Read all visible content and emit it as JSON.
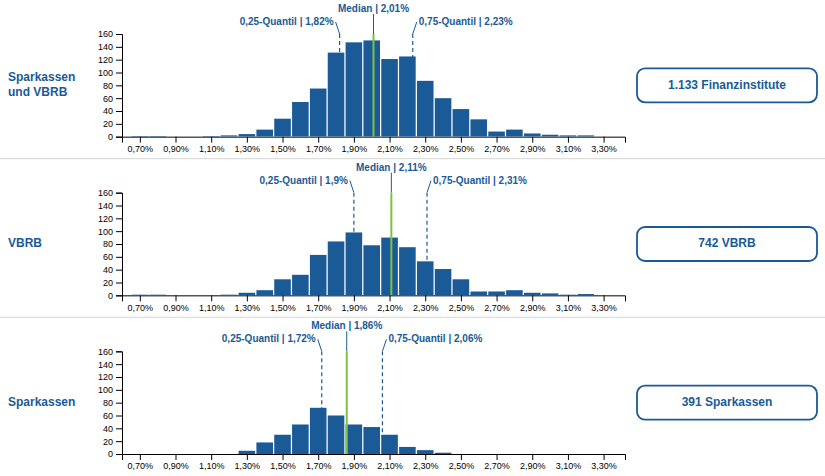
{
  "chart_data": [
    {
      "type": "bar",
      "title": "Sparkassen\nund VBRB",
      "subtitle": "1.133 Finanzinstitute",
      "color": "#1a5a96",
      "grid": false,
      "x": [
        0.7,
        0.8,
        0.9,
        1.0,
        1.1,
        1.2,
        1.3,
        1.4,
        1.5,
        1.6,
        1.7,
        1.8,
        1.9,
        2.0,
        2.1,
        2.2,
        2.3,
        2.4,
        2.5,
        2.6,
        2.7,
        2.8,
        2.9,
        3.0,
        3.1,
        3.2
      ],
      "values": [
        1,
        1,
        0,
        0,
        1,
        2,
        4,
        11,
        28,
        54,
        75,
        131,
        147,
        150,
        121,
        125,
        87,
        60,
        43,
        27,
        8,
        11,
        5,
        3,
        2,
        2
      ],
      "xlim": [
        0.6,
        3.42
      ],
      "xticks": [
        {
          "value": 0.7,
          "label": "0,70%"
        },
        {
          "value": 0.9,
          "label": "0,90%"
        },
        {
          "value": 1.1,
          "label": "1,10%"
        },
        {
          "value": 1.3,
          "label": "1,30%"
        },
        {
          "value": 1.5,
          "label": "1,50%"
        },
        {
          "value": 1.7,
          "label": "1,70%"
        },
        {
          "value": 1.9,
          "label": "1,90%"
        },
        {
          "value": 2.1,
          "label": "2,10%"
        },
        {
          "value": 2.3,
          "label": "2,30%"
        },
        {
          "value": 2.5,
          "label": "2,50%"
        },
        {
          "value": 2.7,
          "label": "2,70%"
        },
        {
          "value": 2.9,
          "label": "2,90%"
        },
        {
          "value": 3.1,
          "label": "3,10%"
        },
        {
          "value": 3.3,
          "label": "3,30%"
        }
      ],
      "ylim": [
        0,
        160
      ],
      "yticks": [
        0,
        20,
        40,
        60,
        80,
        100,
        120,
        140,
        160
      ],
      "annotations": [
        {
          "label": "Median | 2,01%",
          "value": 2.01,
          "color": "#7fc241",
          "line_style": "solid"
        },
        {
          "label": "0,25-Quantil | 1,82%",
          "value": 1.82,
          "color": "#1a5a96",
          "line_style": "dashed"
        },
        {
          "label": "0,75-Quantil | 2,23%",
          "value": 2.23,
          "color": "#1a5a96",
          "line_style": "dashed"
        }
      ]
    },
    {
      "type": "bar",
      "title": "VBRB",
      "subtitle": "742 VBRB",
      "color": "#1a5a96",
      "grid": false,
      "x": [
        0.7,
        0.8,
        0.9,
        1.0,
        1.1,
        1.2,
        1.3,
        1.4,
        1.5,
        1.6,
        1.7,
        1.8,
        1.9,
        2.0,
        2.1,
        2.2,
        2.3,
        2.4,
        2.5,
        2.6,
        2.7,
        2.8,
        2.9,
        3.0,
        3.1,
        3.2
      ],
      "values": [
        1,
        1,
        0,
        0,
        0,
        1,
        4,
        8,
        25,
        32,
        63,
        84,
        98,
        78,
        90,
        75,
        53,
        41,
        25,
        6,
        6,
        8,
        4,
        3,
        1,
        2
      ],
      "xlim": [
        0.6,
        3.42
      ],
      "xticks": [
        {
          "value": 0.7,
          "label": "0,70%"
        },
        {
          "value": 0.9,
          "label": "0,90%"
        },
        {
          "value": 1.1,
          "label": "1,10%"
        },
        {
          "value": 1.3,
          "label": "1,30%"
        },
        {
          "value": 1.5,
          "label": "1,50%"
        },
        {
          "value": 1.7,
          "label": "1,70%"
        },
        {
          "value": 1.9,
          "label": "1,90%"
        },
        {
          "value": 2.1,
          "label": "2,10%"
        },
        {
          "value": 2.3,
          "label": "2,30%"
        },
        {
          "value": 2.5,
          "label": "2,50%"
        },
        {
          "value": 2.7,
          "label": "2,70%"
        },
        {
          "value": 2.9,
          "label": "2,90%"
        },
        {
          "value": 3.1,
          "label": "3,10%"
        },
        {
          "value": 3.3,
          "label": "3,30%"
        }
      ],
      "ylim": [
        0,
        160
      ],
      "yticks": [
        0,
        20,
        40,
        60,
        80,
        100,
        120,
        140,
        160
      ],
      "annotations": [
        {
          "label": "Median | 2,11%",
          "value": 2.11,
          "color": "#7fc241",
          "line_style": "solid"
        },
        {
          "label": "0,25-Quantil | 1,9%",
          "value": 1.9,
          "color": "#1a5a96",
          "line_style": "dashed"
        },
        {
          "label": "0,75-Quantil | 2,31%",
          "value": 2.31,
          "color": "#1a5a96",
          "line_style": "dashed"
        }
      ]
    },
    {
      "type": "bar",
      "title": "Sparkassen",
      "subtitle": "391 Sparkassen",
      "color": "#1a5a96",
      "grid": false,
      "x": [
        0.7,
        0.8,
        0.9,
        1.0,
        1.1,
        1.2,
        1.3,
        1.4,
        1.5,
        1.6,
        1.7,
        1.8,
        1.9,
        2.0,
        2.1,
        2.2,
        2.3,
        2.4,
        2.5,
        2.6,
        2.7,
        2.8,
        2.9,
        3.0,
        3.1,
        3.2
      ],
      "values": [
        0,
        0,
        0,
        0,
        0,
        0,
        5,
        18,
        30,
        46,
        72,
        60,
        46,
        42,
        30,
        11,
        6,
        2,
        0,
        0,
        0,
        0,
        0,
        0,
        0,
        0
      ],
      "xlim": [
        0.6,
        3.42
      ],
      "xticks": [
        {
          "value": 0.7,
          "label": "0,70%"
        },
        {
          "value": 0.9,
          "label": "0,90%"
        },
        {
          "value": 1.1,
          "label": "1,10%"
        },
        {
          "value": 1.3,
          "label": "1,30%"
        },
        {
          "value": 1.5,
          "label": "1,50%"
        },
        {
          "value": 1.7,
          "label": "1,70%"
        },
        {
          "value": 1.9,
          "label": "1,90%"
        },
        {
          "value": 2.1,
          "label": "2,10%"
        },
        {
          "value": 2.3,
          "label": "2,30%"
        },
        {
          "value": 2.5,
          "label": "2,50%"
        },
        {
          "value": 2.7,
          "label": "2,70%"
        },
        {
          "value": 2.9,
          "label": "2,90%"
        },
        {
          "value": 3.1,
          "label": "3,10%"
        },
        {
          "value": 3.3,
          "label": "3,30%"
        }
      ],
      "ylim": [
        0,
        160
      ],
      "yticks": [
        0,
        20,
        40,
        60,
        80,
        100,
        120,
        140,
        160
      ],
      "annotations": [
        {
          "label": "Median | 1,86%",
          "value": 1.86,
          "color": "#7fc241",
          "line_style": "solid"
        },
        {
          "label": "0,25-Quantil | 1,72%",
          "value": 1.72,
          "color": "#1a5a96",
          "line_style": "dashed"
        },
        {
          "label": "0,75-Quantil | 2,06%",
          "value": 2.06,
          "color": "#1a5a96",
          "line_style": "dashed"
        }
      ]
    }
  ]
}
